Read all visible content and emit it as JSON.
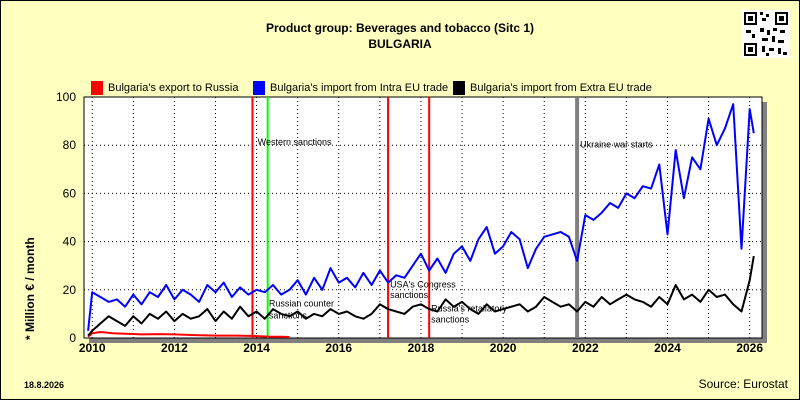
{
  "header": {
    "title_line1": "Product group: Beverages and tobacco (Sitc 1)",
    "title_line2": "BULGARIA"
  },
  "footer": {
    "date": "18.8.2026",
    "source": "Source: Eurostat"
  },
  "colors": {
    "background": "#ffffc0",
    "plot_background": "#ffffff",
    "export_russia": "#ff0000",
    "import_intra_eu": "#0000ff",
    "import_extra_eu": "#000000",
    "sanction_line": "#ff0000",
    "western_sanction_line": "#00ff00",
    "war_line": "#808080"
  },
  "chart_data": {
    "type": "line",
    "title": "Product group: Beverages and tobacco (Sitc 1)",
    "subtitle": "BULGARIA",
    "xlabel": "",
    "ylabel": "* Million € / month",
    "xlim": [
      2009.8,
      2026.3
    ],
    "ylim": [
      0,
      100
    ],
    "x_ticks": [
      2010,
      2012,
      2014,
      2016,
      2018,
      2020,
      2022,
      2024,
      2026
    ],
    "y_ticks": [
      0,
      20,
      40,
      60,
      80,
      100
    ],
    "grid": true,
    "legend": "top",
    "series": [
      {
        "name": "Bulgaria's export to Russia",
        "color": "#ff0000",
        "x": [
          2009.9,
          2010.0,
          2010.2,
          2010.5,
          2010.8,
          2011.2,
          2011.6,
          2012.0,
          2012.5,
          2013.0,
          2013.5,
          2014.0,
          2014.3,
          2014.6,
          2014.8
        ],
        "y": [
          0.5,
          2,
          2.5,
          2,
          1.8,
          1.5,
          1.6,
          1.5,
          1.2,
          1.0,
          1.0,
          0.8,
          0.6,
          0.5,
          0.4
        ]
      },
      {
        "name": "Bulgaria's import from Intra EU trade",
        "color": "#0000ff",
        "x": [
          2009.9,
          2010.0,
          2010.2,
          2010.4,
          2010.6,
          2010.8,
          2011.0,
          2011.2,
          2011.4,
          2011.6,
          2011.8,
          2012.0,
          2012.2,
          2012.4,
          2012.6,
          2012.8,
          2013.0,
          2013.2,
          2013.4,
          2013.6,
          2013.8,
          2014.0,
          2014.2,
          2014.4,
          2014.6,
          2014.8,
          2015.0,
          2015.2,
          2015.4,
          2015.6,
          2015.8,
          2016.0,
          2016.2,
          2016.4,
          2016.6,
          2016.8,
          2017.0,
          2017.2,
          2017.4,
          2017.6,
          2017.8,
          2018.0,
          2018.2,
          2018.4,
          2018.6,
          2018.8,
          2019.0,
          2019.2,
          2019.4,
          2019.6,
          2019.8,
          2020.0,
          2020.2,
          2020.4,
          2020.6,
          2020.8,
          2021.0,
          2021.2,
          2021.4,
          2021.6,
          2021.8,
          2022.0,
          2022.2,
          2022.4,
          2022.6,
          2022.8,
          2023.0,
          2023.2,
          2023.4,
          2023.6,
          2023.8,
          2024.0,
          2024.2,
          2024.4,
          2024.6,
          2024.8,
          2025.0,
          2025.2,
          2025.4,
          2025.6,
          2025.8,
          2026.0,
          2026.1
        ],
        "y": [
          3,
          19,
          17,
          15,
          16,
          13,
          18,
          14,
          19,
          17,
          22,
          16,
          20,
          18,
          15,
          22,
          19,
          23,
          17,
          21,
          18,
          20,
          19,
          22,
          18,
          20,
          24,
          18,
          25,
          20,
          29,
          23,
          25,
          21,
          27,
          22,
          28,
          23,
          26,
          25,
          30,
          35,
          28,
          33,
          27,
          35,
          38,
          32,
          41,
          46,
          35,
          38,
          44,
          41,
          29,
          37,
          42,
          43,
          44,
          42,
          32,
          51,
          49,
          52,
          56,
          54,
          60,
          58,
          63,
          62,
          72,
          43,
          78,
          58,
          75,
          70,
          91,
          80,
          87,
          97,
          37,
          95,
          85
        ]
      },
      {
        "name": "Bulgaria's import from Extra EU trade",
        "color": "#000000",
        "x": [
          2009.9,
          2010.0,
          2010.2,
          2010.4,
          2010.6,
          2010.8,
          2011.0,
          2011.2,
          2011.4,
          2011.6,
          2011.8,
          2012.0,
          2012.2,
          2012.4,
          2012.6,
          2012.8,
          2013.0,
          2013.2,
          2013.4,
          2013.6,
          2013.8,
          2014.0,
          2014.2,
          2014.4,
          2014.6,
          2014.8,
          2015.0,
          2015.2,
          2015.4,
          2015.6,
          2015.8,
          2016.0,
          2016.2,
          2016.4,
          2016.6,
          2016.8,
          2017.0,
          2017.2,
          2017.4,
          2017.6,
          2017.8,
          2018.0,
          2018.2,
          2018.4,
          2018.6,
          2018.8,
          2019.0,
          2019.2,
          2019.4,
          2019.6,
          2019.8,
          2020.0,
          2020.2,
          2020.4,
          2020.6,
          2020.8,
          2021.0,
          2021.2,
          2021.4,
          2021.6,
          2021.8,
          2022.0,
          2022.2,
          2022.4,
          2022.6,
          2022.8,
          2023.0,
          2023.2,
          2023.4,
          2023.6,
          2023.8,
          2024.0,
          2024.2,
          2024.4,
          2024.6,
          2024.8,
          2025.0,
          2025.2,
          2025.4,
          2025.6,
          2025.8,
          2026.0,
          2026.1
        ],
        "y": [
          1,
          3,
          6,
          9,
          7,
          5,
          9,
          6,
          10,
          8,
          11,
          7,
          10,
          8,
          9,
          12,
          7,
          11,
          8,
          13,
          9,
          11,
          8,
          12,
          10,
          9,
          11,
          8,
          10,
          9,
          12,
          10,
          11,
          9,
          8,
          10,
          14,
          12,
          11,
          10,
          13,
          14,
          12,
          11,
          16,
          13,
          15,
          12,
          10,
          14,
          11,
          12,
          13,
          14,
          11,
          13,
          17,
          15,
          13,
          14,
          11,
          15,
          13,
          17,
          14,
          16,
          18,
          16,
          15,
          13,
          17,
          14,
          22,
          16,
          18,
          15,
          20,
          17,
          18,
          14,
          11,
          24,
          34
        ]
      }
    ],
    "event_lines": [
      {
        "x": 2013.9,
        "color": "#ff0000",
        "label": ""
      },
      {
        "x": 2014.27,
        "color": "#00ff00",
        "label": "Western sanctions"
      },
      {
        "x": 2017.2,
        "color": "#ff0000",
        "label": "USA's Congress sanctions"
      },
      {
        "x": 2018.2,
        "color": "#ff0000",
        "label": ""
      },
      {
        "x": 2021.8,
        "color": "#808080",
        "label": "Ukraine war starts"
      }
    ],
    "annotations": [
      {
        "text_line1": "Russian counter",
        "text_line2": "sanctions"
      },
      {
        "text_line1": "Russia's retaliatory",
        "text_line2": "sanctions"
      }
    ]
  }
}
